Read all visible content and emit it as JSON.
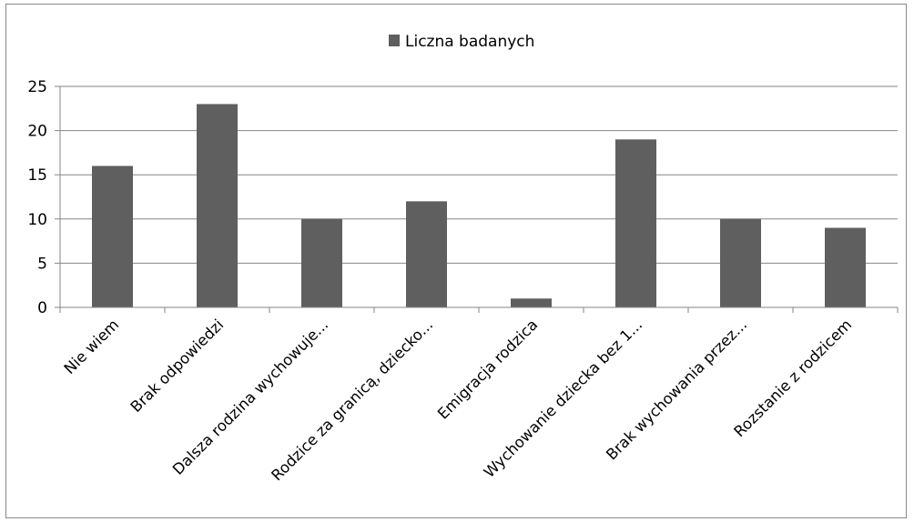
{
  "chart_data": {
    "type": "bar",
    "categories": [
      "Nie wiem",
      "Brak odpowiedzi",
      "Dalsza rodzina wychowuje...",
      "Rodzice za granicą, dziecko...",
      "Emigracja rodzica",
      "Wychowanie dziecka bez 1...",
      "Brak wychowania przez...",
      "Rozstanie z rodzicem"
    ],
    "series": [
      {
        "name": "Liczna badanych",
        "values": [
          16,
          23,
          10,
          12,
          1,
          19,
          10,
          9
        ]
      }
    ],
    "ylim": [
      0,
      25
    ],
    "yticks": [
      "0",
      "5",
      "10",
      "15",
      "20",
      "25"
    ],
    "grid": true,
    "legend": "top-center",
    "colors": {
      "bar": "#5f5f5f",
      "grid": "#868686",
      "axis": "#868686"
    }
  }
}
